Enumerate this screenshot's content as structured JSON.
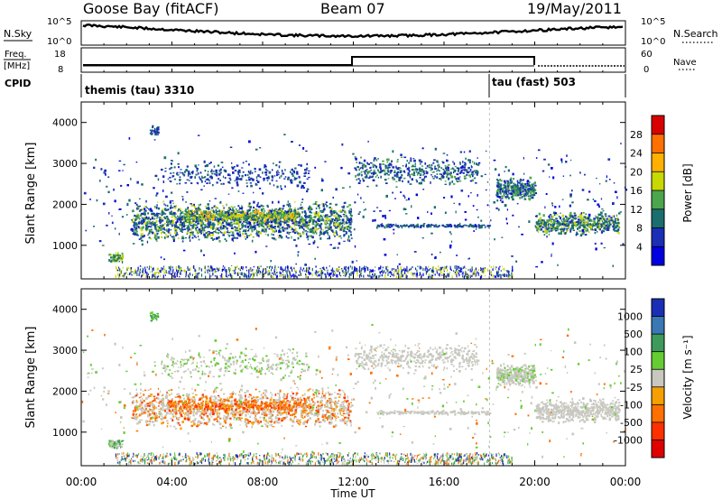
{
  "header": {
    "station": "Goose Bay (fitACF)",
    "beam": "Beam 07",
    "date": "19/May/2011"
  },
  "panels": {
    "noise": {
      "left_label": "N.Sky",
      "right_label": "N.Search",
      "left_ticks": [
        "10^5",
        "10^0"
      ],
      "right_ticks": [
        "10^5",
        "10^0"
      ]
    },
    "freq": {
      "left_label_top": "Freq.",
      "left_label_bottom": "[MHz]",
      "right_label": "Nave",
      "left_ticks": [
        "18",
        "8"
      ],
      "right_ticks": [
        "60",
        "0"
      ]
    },
    "cpid": {
      "label": "CPID",
      "modes": [
        "themis (tau) 3310",
        "tau (fast) 503"
      ]
    }
  },
  "chart_data": [
    {
      "type": "heatmap",
      "title": "",
      "ylabel": "Slant Range [km]",
      "yticks": [
        "4000",
        "3000",
        "2000",
        "1000"
      ],
      "ylim": [
        180,
        4500
      ],
      "colorbar_label": "Power [dB]",
      "colorbar_ticks": [
        "28",
        "24",
        "20",
        "16",
        "12",
        "8",
        "4"
      ],
      "colorbar_colors": [
        "#d90000",
        "#ff7000",
        "#ffb000",
        "#c8d800",
        "#4da64d",
        "#1a6e6e",
        "#1a2fb5",
        "#0000e0"
      ]
    },
    {
      "type": "heatmap",
      "title": "",
      "ylabel": "Slant Range [km]",
      "yticks": [
        "4000",
        "3000",
        "2000",
        "1000"
      ],
      "ylim": [
        180,
        4500
      ],
      "colorbar_label": "Velocity [m s⁻¹]",
      "colorbar_ticks": [
        "1000",
        "500",
        "100",
        "25",
        "-25",
        "-100",
        "-500",
        "-1000"
      ],
      "colorbar_colors": [
        "#1a2fb5",
        "#3a78b5",
        "#3d9a5a",
        "#66cc33",
        "#c8c8c0",
        "#f5a000",
        "#ff7000",
        "#ff3000",
        "#e00000"
      ]
    }
  ],
  "xaxis": {
    "label": "Time UT",
    "ticks": [
      "00:00",
      "04:00",
      "08:00",
      "12:00",
      "16:00",
      "20:00",
      "00:00"
    ]
  }
}
